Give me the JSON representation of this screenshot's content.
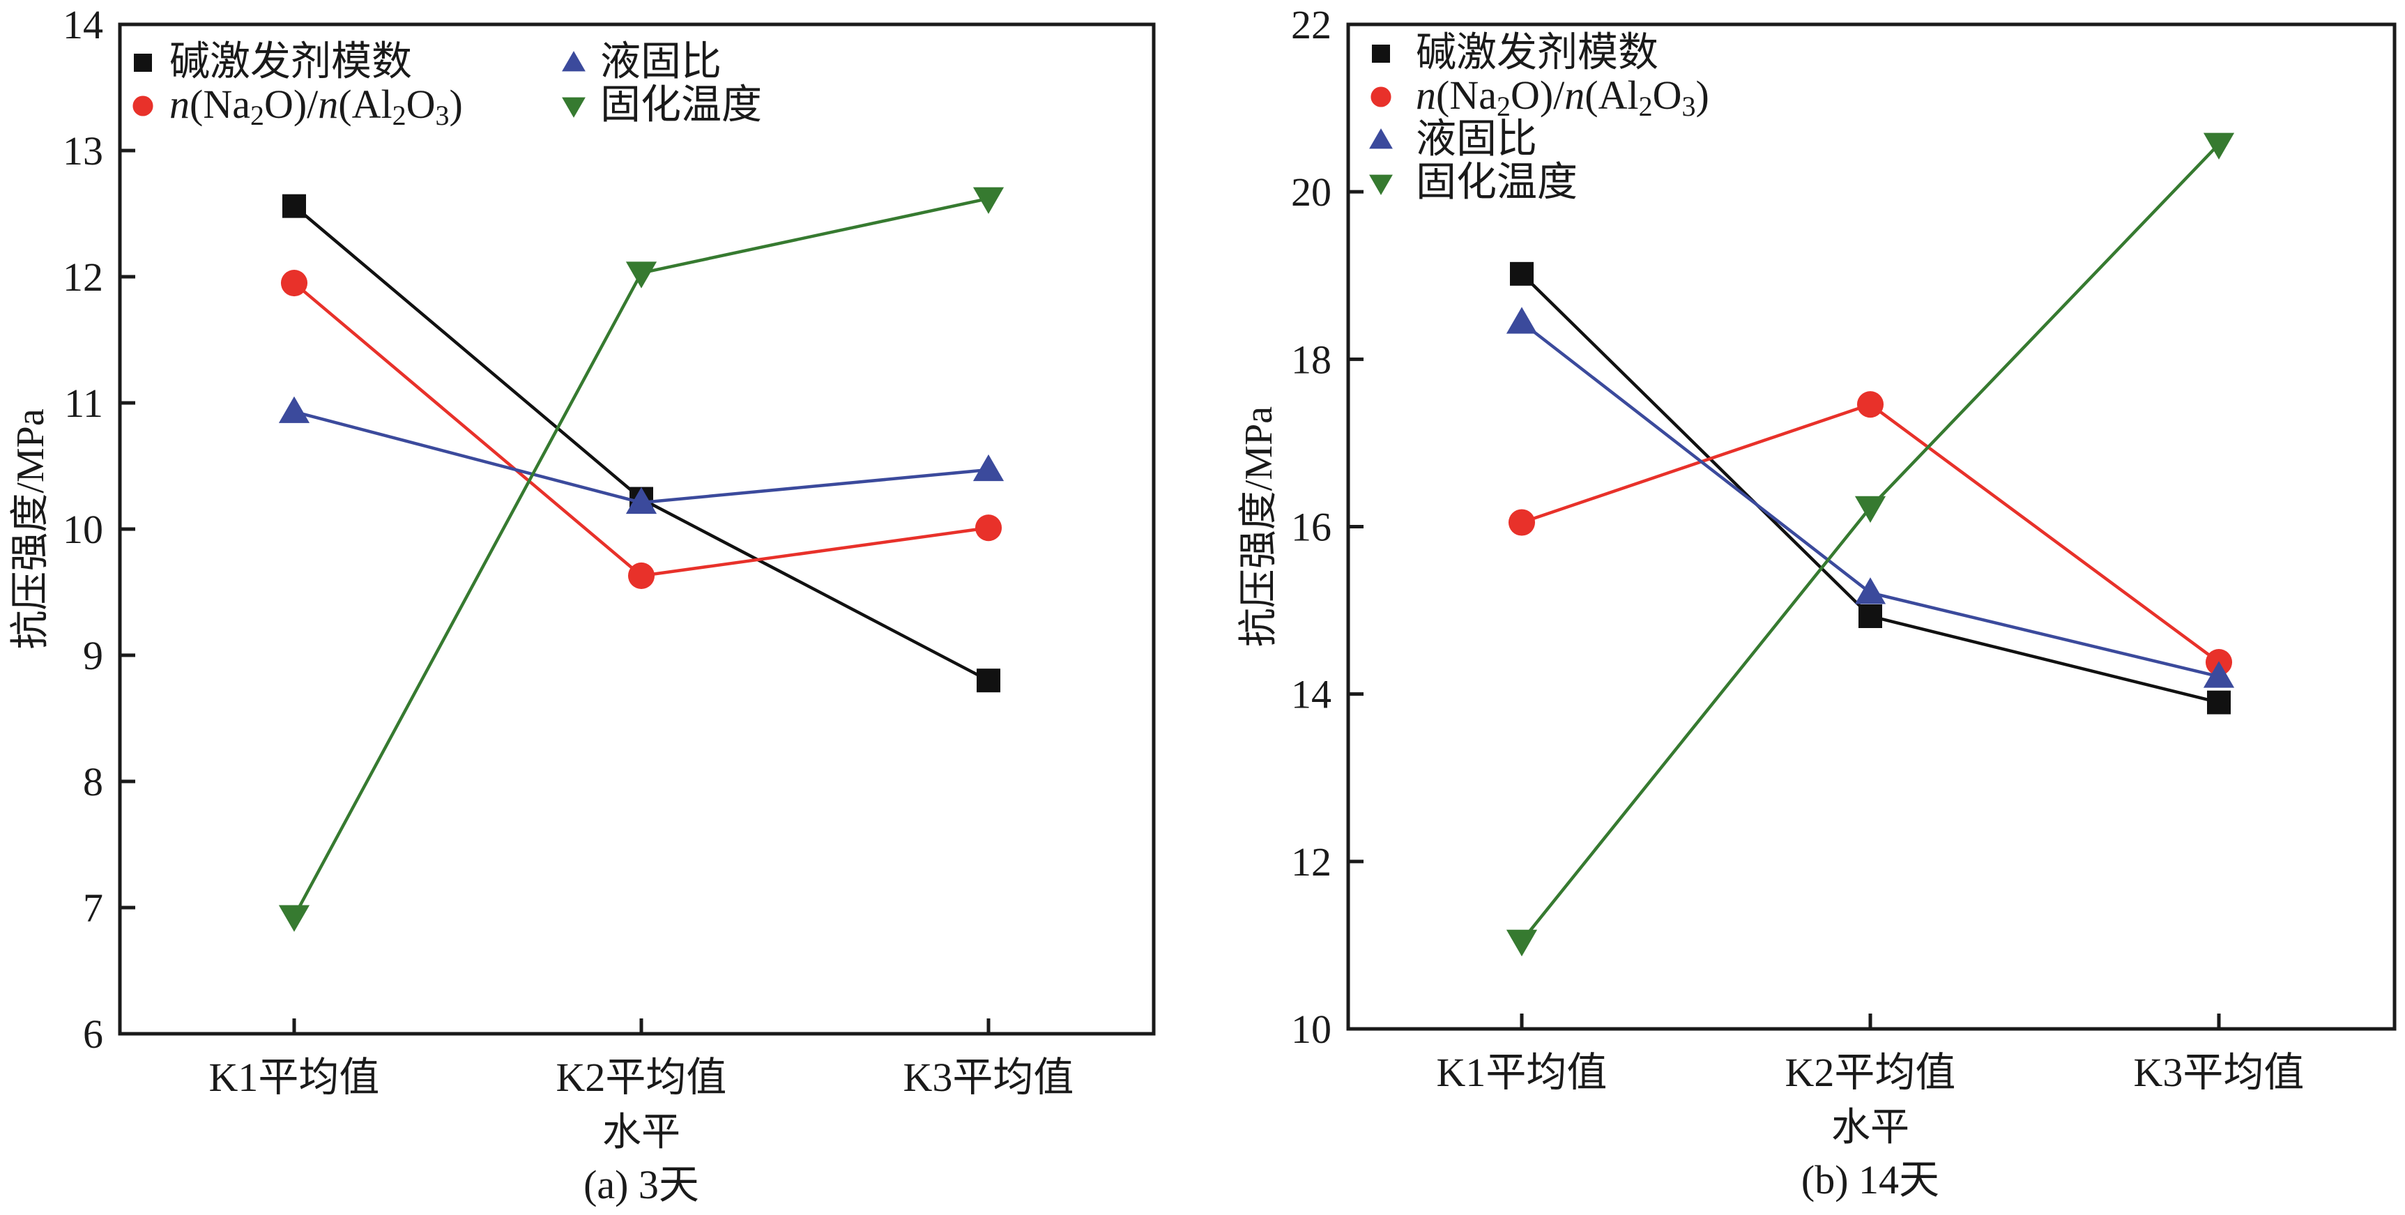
{
  "chart_data": [
    {
      "type": "line",
      "panel": "a",
      "caption": "(a)  3天",
      "xlabel": "水平",
      "ylabel": "抗压强度/MPa",
      "categories": [
        "K1平均值",
        "K2平均值",
        "K3平均值"
      ],
      "ylim": [
        6,
        14
      ],
      "yticks": [
        6,
        7,
        8,
        9,
        10,
        11,
        12,
        13,
        14
      ],
      "grid": false,
      "legend_placement": "top-left, two columns",
      "legend_columns": [
        [
          0,
          1
        ],
        [
          2,
          3
        ]
      ],
      "series": [
        {
          "name": "碱激发剂模数",
          "marker": "square",
          "color": "#111111",
          "values": [
            12.56,
            10.24,
            8.8
          ]
        },
        {
          "name": "n(Na2O)/n(Al2O3)",
          "marker": "circle",
          "color": "#e8312a",
          "values": [
            11.95,
            9.63,
            10.01
          ]
        },
        {
          "name": "液固比",
          "marker": "triangle-up",
          "color": "#3b4a9c",
          "values": [
            10.93,
            10.21,
            10.47
          ]
        },
        {
          "name": "固化温度",
          "marker": "triangle-down",
          "color": "#367a30",
          "values": [
            6.93,
            12.03,
            12.62
          ]
        }
      ]
    },
    {
      "type": "line",
      "panel": "b",
      "caption": "(b)  14天",
      "xlabel": "水平",
      "ylabel": "抗压强度/MPa",
      "categories": [
        "K1平均值",
        "K2平均值",
        "K3平均值"
      ],
      "ylim": [
        10,
        22
      ],
      "yticks": [
        10,
        12,
        14,
        16,
        18,
        20,
        22
      ],
      "grid": false,
      "legend_placement": "top-left, one column",
      "legend_columns": [
        [
          0,
          1,
          2,
          3
        ]
      ],
      "series": [
        {
          "name": "碱激发剂模数",
          "marker": "square",
          "color": "#111111",
          "values": [
            19.02,
            14.93,
            13.9
          ]
        },
        {
          "name": "n(Na2O)/n(Al2O3)",
          "marker": "circle",
          "color": "#e8312a",
          "values": [
            16.05,
            17.46,
            14.38
          ]
        },
        {
          "name": "液固比",
          "marker": "triangle-up",
          "color": "#3b4a9c",
          "values": [
            18.44,
            15.21,
            14.21
          ]
        },
        {
          "name": "固化温度",
          "marker": "triangle-down",
          "color": "#367a30",
          "values": [
            11.05,
            16.23,
            20.57
          ]
        }
      ]
    }
  ]
}
